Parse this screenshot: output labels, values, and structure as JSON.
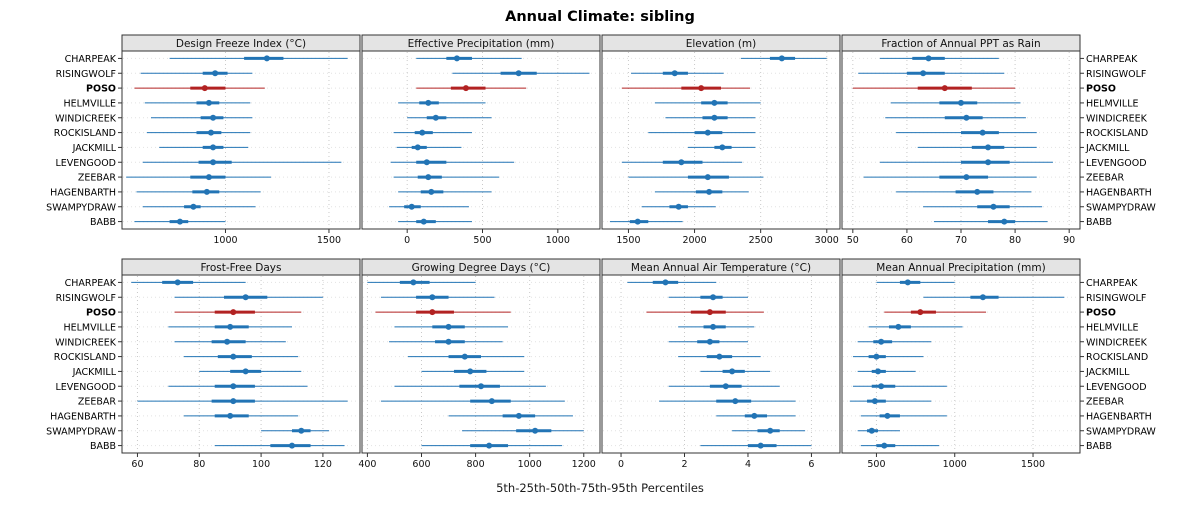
{
  "title": "Annual Climate: sibling",
  "caption": "5th-25th-50th-75th-95th Percentiles",
  "colors": {
    "series": "#2274b5",
    "highlight": "#b22222",
    "strip_bg": "#e4e4e4",
    "grid": "#c9c9c9"
  },
  "chart_data": {
    "type": "scatter",
    "variant": "trellis of horizontal percentile dot-whisker plots (dot = median, thick bar = 25th-75th, thin line = 5th-95th)",
    "percentiles": [
      5,
      25,
      50,
      75,
      95
    ],
    "highlight": "POSO",
    "legend_position": "none",
    "grid": "dotted",
    "stations": [
      "CHARPEAK",
      "RISINGWOLF",
      "POSO",
      "HELMVILLE",
      "WINDICREEK",
      "ROCKISLAND",
      "JACKMILL",
      "LEVENGOOD",
      "ZEEBAR",
      "HAGENBARTH",
      "SWAMPYDRAW",
      "BABB"
    ],
    "panels": [
      {
        "title": "Design Freeze Index (°C)",
        "xlim": [
          500,
          1650
        ],
        "ticks": [
          1000,
          1500
        ],
        "series": [
          [
            730,
            1090,
            1200,
            1280,
            1590
          ],
          [
            590,
            890,
            950,
            1010,
            1130
          ],
          [
            560,
            830,
            900,
            1000,
            1190
          ],
          [
            610,
            860,
            920,
            970,
            1120
          ],
          [
            640,
            880,
            940,
            990,
            1130
          ],
          [
            620,
            860,
            930,
            980,
            1120
          ],
          [
            680,
            890,
            940,
            990,
            1110
          ],
          [
            600,
            870,
            940,
            1030,
            1560
          ],
          [
            520,
            830,
            920,
            1000,
            1220
          ],
          [
            570,
            840,
            910,
            970,
            1170
          ],
          [
            600,
            800,
            845,
            880,
            1145
          ],
          [
            560,
            730,
            780,
            820,
            1000
          ]
        ]
      },
      {
        "title": "Effective Precipitation (mm)",
        "xlim": [
          -300,
          1280
        ],
        "ticks": [
          0,
          500,
          1000
        ],
        "series": [
          [
            60,
            260,
            330,
            430,
            760
          ],
          [
            300,
            620,
            740,
            860,
            1210
          ],
          [
            60,
            290,
            390,
            520,
            790
          ],
          [
            -60,
            80,
            140,
            210,
            520
          ],
          [
            0,
            130,
            190,
            260,
            560
          ],
          [
            -90,
            50,
            100,
            170,
            430
          ],
          [
            -70,
            30,
            70,
            130,
            360
          ],
          [
            -110,
            60,
            130,
            260,
            710
          ],
          [
            -90,
            70,
            140,
            230,
            610
          ],
          [
            -60,
            90,
            160,
            240,
            560
          ],
          [
            -120,
            -20,
            30,
            90,
            410
          ],
          [
            -60,
            60,
            110,
            190,
            430
          ]
        ]
      },
      {
        "title": "Elevation (m)",
        "xlim": [
          1300,
          3100
        ],
        "ticks": [
          1500,
          2000,
          2500,
          3000
        ],
        "series": [
          [
            2350,
            2570,
            2660,
            2760,
            3000
          ],
          [
            1520,
            1760,
            1850,
            1950,
            2220
          ],
          [
            1450,
            1900,
            2050,
            2200,
            2420
          ],
          [
            1700,
            2050,
            2150,
            2250,
            2500
          ],
          [
            1780,
            2060,
            2150,
            2250,
            2460
          ],
          [
            1650,
            2000,
            2100,
            2210,
            2460
          ],
          [
            1950,
            2150,
            2210,
            2280,
            2460
          ],
          [
            1450,
            1760,
            1900,
            2060,
            2360
          ],
          [
            1500,
            1950,
            2100,
            2260,
            2520
          ],
          [
            1700,
            2010,
            2110,
            2210,
            2410
          ],
          [
            1600,
            1810,
            1880,
            1950,
            2160
          ],
          [
            1360,
            1510,
            1570,
            1650,
            1910
          ]
        ]
      },
      {
        "title": "Fraction of Annual PPT as Rain",
        "xlim": [
          48,
          92
        ],
        "ticks": [
          50,
          60,
          70,
          80,
          90
        ],
        "series": [
          [
            55,
            61,
            64,
            67,
            77
          ],
          [
            51,
            60,
            63,
            67,
            78
          ],
          [
            50,
            62,
            67,
            72,
            80
          ],
          [
            57,
            66,
            70,
            73,
            81
          ],
          [
            56,
            67,
            71,
            74,
            82
          ],
          [
            58,
            70,
            74,
            77,
            84
          ],
          [
            62,
            72,
            75,
            78,
            84
          ],
          [
            55,
            70,
            75,
            79,
            87
          ],
          [
            52,
            66,
            71,
            75,
            84
          ],
          [
            58,
            69,
            73,
            76,
            83
          ],
          [
            63,
            73,
            76,
            79,
            85
          ],
          [
            65,
            75,
            78,
            80,
            86
          ]
        ]
      },
      {
        "title": "Frost-Free Days",
        "xlim": [
          55,
          132
        ],
        "ticks": [
          60,
          80,
          100,
          120
        ],
        "series": [
          [
            58,
            68,
            73,
            78,
            95
          ],
          [
            72,
            88,
            95,
            102,
            120
          ],
          [
            72,
            85,
            91,
            98,
            113
          ],
          [
            70,
            85,
            90,
            96,
            110
          ],
          [
            72,
            84,
            89,
            95,
            108
          ],
          [
            75,
            86,
            91,
            97,
            112
          ],
          [
            80,
            90,
            95,
            100,
            113
          ],
          [
            70,
            85,
            91,
            98,
            115
          ],
          [
            60,
            84,
            91,
            98,
            128
          ],
          [
            75,
            85,
            90,
            96,
            112
          ],
          [
            100,
            110,
            113,
            116,
            122
          ],
          [
            85,
            103,
            110,
            116,
            127
          ]
        ]
      },
      {
        "title": "Growing Degree Days (°C)",
        "xlim": [
          380,
          1260
        ],
        "ticks": [
          400,
          600,
          800,
          1000,
          1200
        ],
        "series": [
          [
            400,
            520,
            570,
            630,
            800
          ],
          [
            450,
            580,
            640,
            700,
            870
          ],
          [
            430,
            580,
            640,
            720,
            930
          ],
          [
            500,
            640,
            700,
            760,
            920
          ],
          [
            480,
            650,
            700,
            760,
            900
          ],
          [
            550,
            700,
            760,
            820,
            980
          ],
          [
            600,
            720,
            780,
            840,
            980
          ],
          [
            500,
            740,
            820,
            890,
            1060
          ],
          [
            450,
            780,
            860,
            930,
            1130
          ],
          [
            700,
            900,
            960,
            1020,
            1160
          ],
          [
            750,
            950,
            1020,
            1080,
            1200
          ],
          [
            600,
            780,
            850,
            920,
            1120
          ]
        ]
      },
      {
        "title": "Mean Annual Air Temperature (°C)",
        "xlim": [
          -0.6,
          6.9
        ],
        "ticks": [
          0,
          2,
          4,
          6
        ],
        "series": [
          [
            0.2,
            1.0,
            1.4,
            1.8,
            3.0
          ],
          [
            1.5,
            2.5,
            2.9,
            3.2,
            4.0
          ],
          [
            0.8,
            2.2,
            2.8,
            3.3,
            4.5
          ],
          [
            1.8,
            2.6,
            2.9,
            3.3,
            4.2
          ],
          [
            1.5,
            2.4,
            2.8,
            3.1,
            4.0
          ],
          [
            1.8,
            2.7,
            3.1,
            3.5,
            4.4
          ],
          [
            2.5,
            3.2,
            3.5,
            3.9,
            4.7
          ],
          [
            1.5,
            2.8,
            3.3,
            3.8,
            5.0
          ],
          [
            1.2,
            3.0,
            3.6,
            4.1,
            5.5
          ],
          [
            3.0,
            3.9,
            4.2,
            4.6,
            5.5
          ],
          [
            3.5,
            4.3,
            4.7,
            5.0,
            5.8
          ],
          [
            2.5,
            4.0,
            4.4,
            4.9,
            6.0
          ]
        ]
      },
      {
        "title": "Mean Annual Precipitation (mm)",
        "xlim": [
          280,
          1800
        ],
        "ticks": [
          500,
          1000,
          1500
        ],
        "series": [
          [
            500,
            650,
            700,
            780,
            1000
          ],
          [
            800,
            1100,
            1180,
            1280,
            1700
          ],
          [
            550,
            720,
            780,
            880,
            1200
          ],
          [
            450,
            580,
            640,
            720,
            1050
          ],
          [
            380,
            480,
            530,
            600,
            850
          ],
          [
            350,
            450,
            500,
            560,
            800
          ],
          [
            380,
            470,
            510,
            560,
            750
          ],
          [
            350,
            470,
            530,
            620,
            950
          ],
          [
            330,
            440,
            490,
            560,
            850
          ],
          [
            400,
            520,
            570,
            650,
            950
          ],
          [
            380,
            440,
            470,
            510,
            650
          ],
          [
            400,
            500,
            550,
            620,
            900
          ]
        ]
      }
    ]
  }
}
